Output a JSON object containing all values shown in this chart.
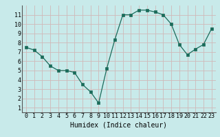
{
  "x": [
    0,
    1,
    2,
    3,
    4,
    5,
    6,
    7,
    8,
    9,
    10,
    11,
    12,
    13,
    14,
    15,
    16,
    17,
    18,
    19,
    20,
    21,
    22,
    23
  ],
  "y": [
    7.5,
    7.2,
    6.5,
    5.5,
    5.0,
    5.0,
    4.8,
    3.5,
    2.7,
    1.5,
    5.2,
    8.3,
    11.0,
    11.0,
    11.5,
    11.5,
    11.3,
    11.0,
    10.0,
    7.8,
    6.7,
    7.3,
    7.8,
    9.5
  ],
  "xlabel": "Humidex (Indice chaleur)",
  "xlim": [
    -0.5,
    23.5
  ],
  "ylim": [
    0.5,
    12.0
  ],
  "yticks": [
    1,
    2,
    3,
    4,
    5,
    6,
    7,
    8,
    9,
    10,
    11
  ],
  "xticks": [
    0,
    1,
    2,
    3,
    4,
    5,
    6,
    7,
    8,
    9,
    10,
    11,
    12,
    13,
    14,
    15,
    16,
    17,
    18,
    19,
    20,
    21,
    22,
    23
  ],
  "line_color": "#1a6b5a",
  "marker": "s",
  "marker_size": 2.5,
  "bg_color": "#c8eaea",
  "grid_color": "#d0b8b8",
  "xlabel_fontsize": 7,
  "tick_fontsize": 6
}
